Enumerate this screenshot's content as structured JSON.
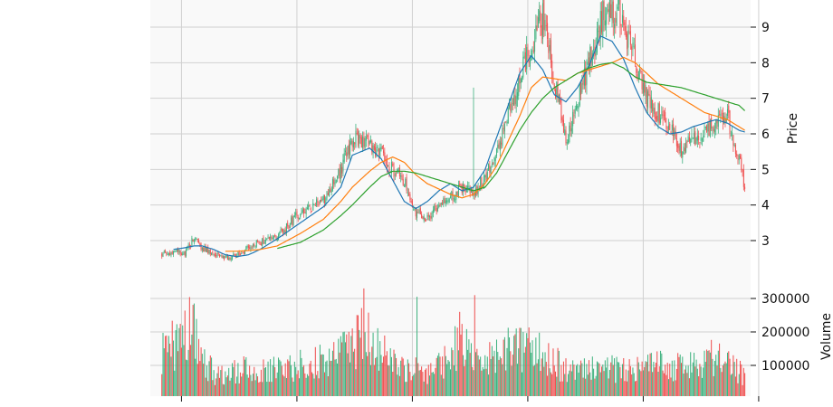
{
  "chart_data": {
    "type": "candlestick",
    "title": "",
    "colors": {
      "up": "#3fb27f",
      "down": "#ef4f4f",
      "ma_fast": "#1f77b4",
      "ma_mid": "#ff7f0e",
      "ma_slow": "#2ca02c",
      "grid": "#d0d0d0",
      "panel_bg": "#f9f9f9"
    },
    "price_panel": {
      "ylabel": "Price",
      "yticks": [
        "3",
        "4",
        "5",
        "6",
        "7",
        "8",
        "9"
      ],
      "ylim": [
        2.0,
        9.75
      ],
      "grid": true
    },
    "volume_panel": {
      "ylabel": "Volume",
      "yticks": [
        "100000",
        "200000",
        "300000"
      ],
      "ylim": [
        0,
        350000
      ],
      "grid": true
    },
    "x_range": [
      -10,
      510
    ],
    "x_grid_positions": [
      17,
      117,
      217,
      317,
      417,
      517
    ],
    "price_anchors": {
      "x": [
        0,
        10,
        20,
        28,
        35,
        45,
        55,
        65,
        80,
        100,
        120,
        140,
        155,
        165,
        180,
        190,
        200,
        210,
        220,
        230,
        240,
        250,
        260,
        270,
        280,
        290,
        300,
        310,
        320,
        330,
        340,
        350,
        360,
        370,
        375,
        382,
        390,
        400,
        410,
        420,
        430,
        440,
        450,
        460,
        470,
        480,
        490,
        500,
        505
      ],
      "close": [
        2.6,
        2.7,
        2.65,
        3.1,
        2.8,
        2.6,
        2.5,
        2.6,
        2.9,
        3.1,
        3.8,
        4.1,
        5.0,
        5.9,
        5.8,
        5.4,
        5.0,
        4.7,
        3.8,
        3.6,
        4.0,
        4.2,
        4.5,
        4.3,
        4.8,
        5.5,
        6.5,
        7.5,
        8.5,
        9.3,
        7.5,
        5.8,
        7.0,
        8.0,
        8.5,
        9.4,
        9.6,
        9.1,
        8.0,
        7.0,
        6.6,
        6.2,
        5.6,
        5.9,
        6.0,
        6.3,
        6.5,
        5.3,
        4.5
      ]
    },
    "moving_averages": [
      {
        "key": "ma_fast",
        "x": [
          10,
          20,
          28,
          35,
          45,
          55,
          65,
          75,
          85,
          100,
          120,
          140,
          155,
          165,
          180,
          190,
          200,
          210,
          220,
          230,
          240,
          250,
          260,
          270,
          280,
          290,
          300,
          310,
          320,
          330,
          340,
          350,
          360,
          370,
          380,
          390,
          400,
          410,
          420,
          430,
          440,
          450,
          460,
          470,
          480,
          490,
          500,
          505
        ],
        "y": [
          2.75,
          2.8,
          2.85,
          2.85,
          2.75,
          2.6,
          2.55,
          2.6,
          2.75,
          3.05,
          3.5,
          3.95,
          4.5,
          5.4,
          5.6,
          5.3,
          4.7,
          4.1,
          3.9,
          4.1,
          4.4,
          4.6,
          4.4,
          4.5,
          5.0,
          5.9,
          6.8,
          7.7,
          8.2,
          7.8,
          7.1,
          6.9,
          7.3,
          7.9,
          8.75,
          8.6,
          8.1,
          7.3,
          6.6,
          6.2,
          6.0,
          6.05,
          6.2,
          6.3,
          6.4,
          6.3,
          6.1,
          6.05
        ]
      },
      {
        "key": "ma_mid",
        "x": [
          55,
          65,
          75,
          85,
          100,
          120,
          140,
          155,
          165,
          180,
          190,
          200,
          210,
          220,
          230,
          240,
          250,
          260,
          270,
          280,
          290,
          300,
          310,
          320,
          330,
          340,
          350,
          360,
          370,
          380,
          390,
          400,
          410,
          420,
          430,
          440,
          450,
          460,
          470,
          480,
          490,
          500,
          505
        ],
        "y": [
          2.7,
          2.7,
          2.72,
          2.75,
          2.85,
          3.2,
          3.6,
          4.1,
          4.5,
          4.95,
          5.2,
          5.35,
          5.2,
          4.85,
          4.6,
          4.45,
          4.3,
          4.2,
          4.3,
          4.6,
          5.1,
          5.8,
          6.5,
          7.3,
          7.6,
          7.55,
          7.5,
          7.7,
          7.8,
          7.9,
          8.0,
          8.15,
          8.0,
          7.7,
          7.4,
          7.2,
          7.0,
          6.8,
          6.6,
          6.5,
          6.4,
          6.2,
          6.1
        ]
      },
      {
        "key": "ma_slow",
        "x": [
          100,
          120,
          140,
          155,
          165,
          180,
          190,
          200,
          210,
          220,
          230,
          240,
          250,
          260,
          270,
          280,
          290,
          300,
          310,
          320,
          330,
          340,
          350,
          360,
          370,
          380,
          390,
          400,
          410,
          420,
          430,
          440,
          450,
          460,
          470,
          480,
          490,
          500,
          505
        ],
        "y": [
          2.78,
          2.95,
          3.3,
          3.7,
          4.0,
          4.5,
          4.8,
          4.95,
          4.95,
          4.9,
          4.8,
          4.7,
          4.6,
          4.5,
          4.4,
          4.5,
          4.9,
          5.5,
          6.1,
          6.6,
          7.0,
          7.3,
          7.5,
          7.7,
          7.85,
          7.95,
          8.0,
          7.85,
          7.6,
          7.45,
          7.4,
          7.35,
          7.3,
          7.2,
          7.1,
          7.0,
          6.9,
          6.8,
          6.65
        ]
      }
    ],
    "volume_envelope": {
      "x": [
        0,
        15,
        28,
        35,
        50,
        70,
        90,
        110,
        130,
        150,
        170,
        180,
        190,
        200,
        210,
        220,
        230,
        240,
        250,
        260,
        270,
        280,
        300,
        320,
        340,
        360,
        380,
        400,
        420,
        440,
        460,
        480,
        505
      ],
      "level": [
        150000,
        200000,
        260000,
        120000,
        80000,
        100000,
        90000,
        110000,
        120000,
        140000,
        200000,
        230000,
        170000,
        130000,
        110000,
        100000,
        95000,
        110000,
        160000,
        190000,
        130000,
        120000,
        180000,
        170000,
        120000,
        100000,
        110000,
        100000,
        105000,
        115000,
        120000,
        140000,
        80000
      ]
    },
    "volume_spikes": [
      {
        "x": 175,
        "value": 330000
      },
      {
        "x": 271,
        "value": 310000
      },
      {
        "x": 221,
        "value": 305000
      },
      {
        "x": 28,
        "value": 285000
      },
      {
        "x": 170,
        "value": 250000
      },
      {
        "x": 258,
        "value": 260000
      }
    ],
    "price_spikes": [
      {
        "x": 270,
        "high": 7.3
      }
    ],
    "n_bars": 506,
    "seed": 7
  }
}
